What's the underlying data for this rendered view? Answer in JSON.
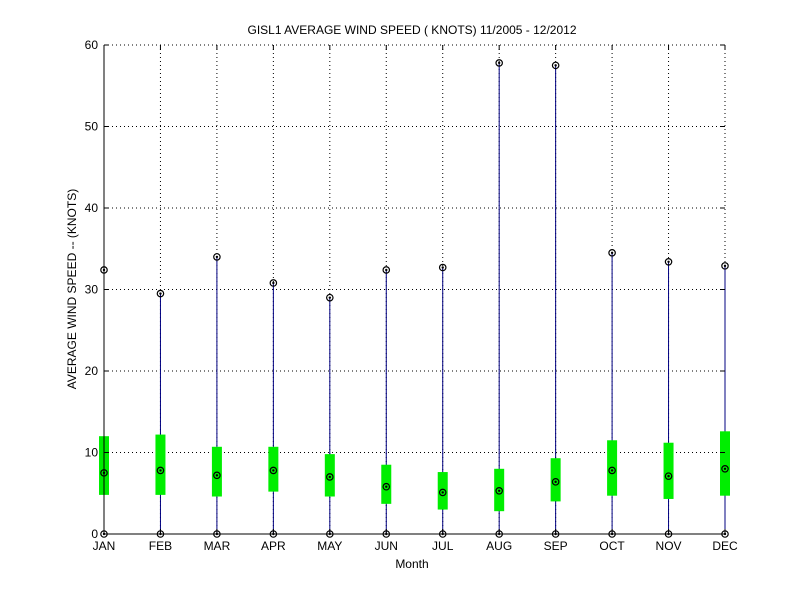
{
  "chart_data": {
    "type": "box",
    "title": "GISL1  AVERAGE WIND SPEED ( KNOTS) 11/2005 - 12/2012",
    "xlabel": "Month",
    "ylabel": "AVERAGE WIND SPEED -- (KNOTS)",
    "ylim": [
      0,
      60
    ],
    "yticks": [
      0,
      10,
      20,
      30,
      40,
      50,
      60
    ],
    "grid": true,
    "categories": [
      "JAN",
      "FEB",
      "MAR",
      "APR",
      "MAY",
      "JUN",
      "JUL",
      "AUG",
      "SEP",
      "OCT",
      "NOV",
      "DEC"
    ],
    "min": [
      0,
      0,
      0,
      0,
      0,
      0,
      0,
      0,
      0,
      0,
      0,
      0
    ],
    "q1": [
      4.8,
      4.8,
      4.6,
      5.2,
      4.6,
      3.7,
      3.0,
      2.8,
      4.0,
      4.7,
      4.3,
      4.7
    ],
    "mean": [
      7.5,
      7.8,
      7.2,
      7.8,
      7.0,
      5.8,
      5.1,
      5.3,
      6.4,
      7.8,
      7.1,
      8.0
    ],
    "q3": [
      12.0,
      12.2,
      10.7,
      10.7,
      9.8,
      8.5,
      7.6,
      8.0,
      9.3,
      11.5,
      11.2,
      12.6
    ],
    "max": [
      32.4,
      29.5,
      34.0,
      30.8,
      29.0,
      32.4,
      32.7,
      57.8,
      57.5,
      34.5,
      33.4,
      32.9
    ],
    "colors": {
      "whisker": "#000080",
      "box": "#00ee00",
      "marker": "#000000",
      "grid": "#000000"
    }
  }
}
